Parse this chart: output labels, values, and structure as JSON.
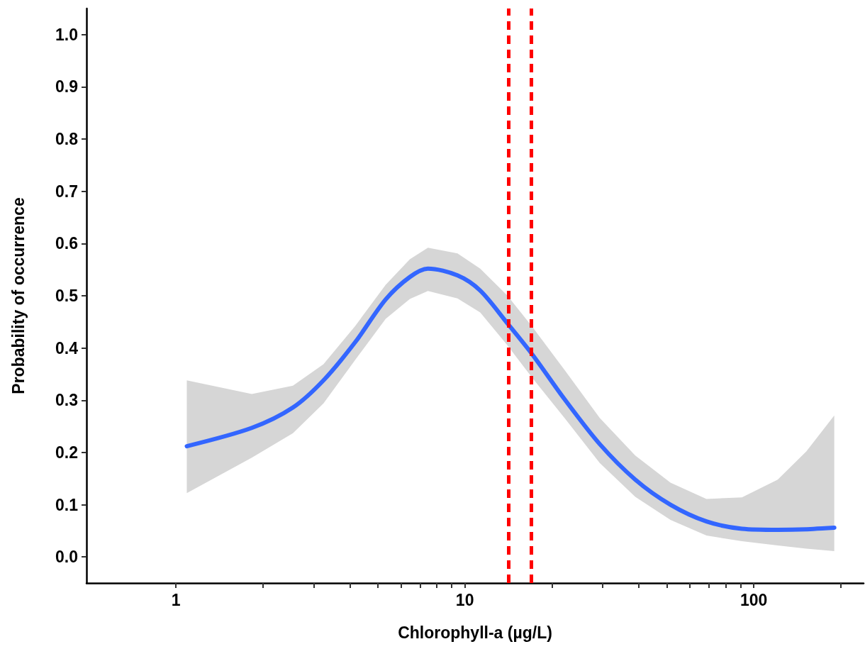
{
  "chart_data": {
    "type": "line",
    "xlabel": "Chlorophyll-a (µg/L)",
    "ylabel": "Probability of occurrence",
    "log": "x",
    "xlim": [
      0.49,
      240
    ],
    "ylim": [
      -0.05,
      1.05
    ],
    "xticks": [
      {
        "value": 1,
        "label": "1"
      },
      {
        "value": 2,
        "label": null
      },
      {
        "value": 3,
        "label": null
      },
      {
        "value": 4,
        "label": null
      },
      {
        "value": 5,
        "label": null
      },
      {
        "value": 6,
        "label": null
      },
      {
        "value": 7,
        "label": null
      },
      {
        "value": 8,
        "label": null
      },
      {
        "value": 9,
        "label": null
      },
      {
        "value": 10,
        "label": "10"
      },
      {
        "value": 20,
        "label": null
      },
      {
        "value": 30,
        "label": null
      },
      {
        "value": 40,
        "label": null
      },
      {
        "value": 50,
        "label": null
      },
      {
        "value": 60,
        "label": null
      },
      {
        "value": 70,
        "label": null
      },
      {
        "value": 80,
        "label": null
      },
      {
        "value": 90,
        "label": null
      },
      {
        "value": 100,
        "label": "100"
      },
      {
        "value": 200,
        "label": null
      }
    ],
    "yticks": [
      {
        "value": 0,
        "label": "0.0"
      },
      {
        "value": 0.1,
        "label": "0.1"
      },
      {
        "value": 0.2,
        "label": "0.2"
      },
      {
        "value": 0.3,
        "label": "0.3"
      },
      {
        "value": 0.4,
        "label": "0.4"
      },
      {
        "value": 0.5,
        "label": "0.5"
      },
      {
        "value": 0.6,
        "label": "0.6"
      },
      {
        "value": 0.7,
        "label": "0.7"
      },
      {
        "value": 0.8,
        "label": "0.8"
      },
      {
        "value": 0.9,
        "label": "0.9"
      },
      {
        "value": 1.0,
        "label": "1.0"
      }
    ],
    "x": [
      1.09,
      1.83,
      2.54,
      3.24,
      4.17,
      5.32,
      6.45,
      7.45,
      9.43,
      11.3,
      14.0,
      17.1,
      22.2,
      29.3,
      38.9,
      51.5,
      68.6,
      91,
      121,
      152,
      190
    ],
    "series": [
      {
        "color": "#3366ff",
        "values": [
          0.212,
          0.247,
          0.286,
          0.338,
          0.411,
          0.493,
          0.536,
          0.552,
          0.539,
          0.51,
          0.448,
          0.388,
          0.301,
          0.216,
          0.148,
          0.1,
          0.068,
          0.054,
          0.052,
          0.053,
          0.056
        ],
        "lower": [
          0.122,
          0.19,
          0.237,
          0.294,
          0.377,
          0.456,
          0.494,
          0.509,
          0.495,
          0.468,
          0.406,
          0.343,
          0.265,
          0.18,
          0.115,
          0.071,
          0.041,
          0.03,
          0.022,
          0.016,
          0.011
        ],
        "upper": [
          0.338,
          0.312,
          0.328,
          0.369,
          0.442,
          0.521,
          0.57,
          0.592,
          0.581,
          0.552,
          0.501,
          0.441,
          0.357,
          0.266,
          0.194,
          0.142,
          0.111,
          0.114,
          0.148,
          0.202,
          0.271
        ]
      }
    ],
    "ref_lines": [
      {
        "axis": "x",
        "value": 14,
        "color": "#ff0000",
        "line_style": "dashed"
      },
      {
        "axis": "x",
        "value": 17,
        "color": "#ff0000",
        "line_style": "dashed"
      }
    ]
  }
}
